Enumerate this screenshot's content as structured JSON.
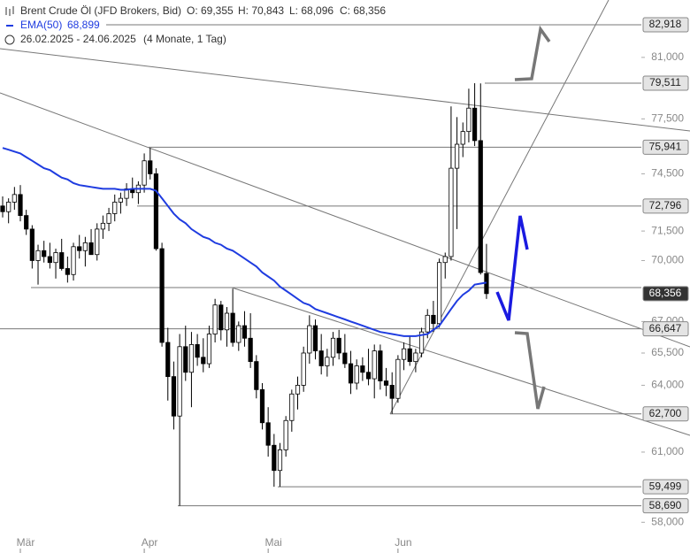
{
  "chart_data": {
    "type": "candlestick",
    "header": {
      "title": "Brent Crude Öl (JFD Brokers, Bid)",
      "open": "O: 69,355",
      "high": "H: 70,843",
      "low": "L: 68,096",
      "close": "C: 68,356",
      "ema_name": "EMA(50)",
      "ema_value": "68,899",
      "range": "26.02.2025 - 24.06.2025",
      "period": "(4 Monate, 1 Tag)"
    },
    "categories": [
      null,
      null,
      null,
      "Mär",
      null,
      null,
      null,
      null,
      null,
      null,
      null,
      null,
      null,
      null,
      null,
      null,
      null,
      null,
      null,
      null,
      null,
      null,
      null,
      null,
      "Apr",
      null,
      null,
      null,
      null,
      null,
      null,
      null,
      null,
      null,
      null,
      null,
      null,
      null,
      null,
      null,
      null,
      null,
      null,
      null,
      null,
      "Mai",
      null,
      null,
      null,
      null,
      null,
      null,
      null,
      null,
      null,
      null,
      null,
      null,
      null,
      null,
      null,
      null,
      null,
      null,
      null,
      null,
      null,
      "Jun",
      null,
      null,
      null,
      null,
      null,
      null,
      null,
      null,
      null,
      null,
      null,
      null,
      null,
      null,
      null
    ],
    "ohlc": [
      [
        72800,
        73300,
        72200,
        72500
      ],
      [
        72500,
        73200,
        71900,
        73000
      ],
      [
        73000,
        73800,
        72600,
        73400
      ],
      [
        73400,
        73900,
        72000,
        72300
      ],
      [
        72300,
        72600,
        71300,
        71600
      ],
      [
        71600,
        71800,
        69600,
        70000
      ],
      [
        70000,
        70800,
        68800,
        70500
      ],
      [
        70500,
        71000,
        69900,
        70200
      ],
      [
        70200,
        70900,
        69600,
        69900
      ],
      [
        69900,
        70600,
        69100,
        70400
      ],
      [
        70400,
        71100,
        69500,
        69600
      ],
      [
        69600,
        70200,
        68900,
        69300
      ],
      [
        69300,
        70900,
        69000,
        70700
      ],
      [
        70700,
        71300,
        70100,
        70500
      ],
      [
        70500,
        71200,
        69700,
        70900
      ],
      [
        70900,
        71600,
        70300,
        70300
      ],
      [
        70300,
        71900,
        70000,
        71600
      ],
      [
        71600,
        72300,
        71100,
        71900
      ],
      [
        71900,
        72700,
        71500,
        72400
      ],
      [
        72400,
        73400,
        72000,
        73000
      ],
      [
        73000,
        73500,
        72400,
        73200
      ],
      [
        73200,
        74000,
        72800,
        73700
      ],
      [
        73700,
        74300,
        73200,
        73500
      ],
      [
        73500,
        74100,
        72900,
        73900
      ],
      [
        73900,
        75600,
        73500,
        75200
      ],
      [
        75200,
        75900,
        74200,
        74500
      ],
      [
        74500,
        74800,
        70500,
        70600
      ],
      [
        70600,
        70900,
        65800,
        66000
      ],
      [
        66000,
        66700,
        63300,
        64400
      ],
      [
        64400,
        65100,
        62000,
        62600
      ],
      [
        62600,
        66400,
        58690,
        65800
      ],
      [
        65800,
        66800,
        64200,
        64600
      ],
      [
        64600,
        66500,
        63000,
        65900
      ],
      [
        65900,
        66400,
        64900,
        65300
      ],
      [
        65300,
        66200,
        64600,
        65000
      ],
      [
        65000,
        66800,
        64800,
        66400
      ],
      [
        66400,
        68100,
        66000,
        67800
      ],
      [
        67800,
        68000,
        66100,
        66600
      ],
      [
        66600,
        67700,
        65800,
        67400
      ],
      [
        67400,
        68600,
        65800,
        66000
      ],
      [
        66000,
        67000,
        65600,
        66800
      ],
      [
        66800,
        67500,
        65800,
        66200
      ],
      [
        66200,
        67400,
        64800,
        65100
      ],
      [
        65100,
        65400,
        63400,
        63800
      ],
      [
        63800,
        64100,
        62000,
        62300
      ],
      [
        62300,
        63000,
        60800,
        61300
      ],
      [
        61300,
        61800,
        59499,
        60200
      ],
      [
        60200,
        61400,
        59500,
        61100
      ],
      [
        61100,
        62600,
        60800,
        62400
      ],
      [
        62400,
        63800,
        61900,
        63600
      ],
      [
        63600,
        64400,
        62900,
        64000
      ],
      [
        64000,
        65800,
        63700,
        65500
      ],
      [
        65500,
        67300,
        65000,
        66800
      ],
      [
        66800,
        67100,
        65200,
        65600
      ],
      [
        65600,
        66400,
        64500,
        64900
      ],
      [
        64900,
        65700,
        64400,
        65300
      ],
      [
        65300,
        66500,
        64900,
        66200
      ],
      [
        66200,
        66600,
        65200,
        65500
      ],
      [
        65500,
        66400,
        64800,
        65000
      ],
      [
        65000,
        65600,
        63600,
        64100
      ],
      [
        64100,
        65200,
        63800,
        64900
      ],
      [
        64900,
        65300,
        64200,
        64600
      ],
      [
        64600,
        65700,
        64000,
        64300
      ],
      [
        64300,
        65900,
        63400,
        65600
      ],
      [
        65600,
        65900,
        63800,
        64200
      ],
      [
        64200,
        64800,
        63500,
        64000
      ],
      [
        64000,
        64600,
        62700,
        63400
      ],
      [
        63400,
        65400,
        63200,
        65200
      ],
      [
        65200,
        66000,
        64700,
        65700
      ],
      [
        65700,
        66300,
        64900,
        65100
      ],
      [
        65100,
        65700,
        64600,
        65500
      ],
      [
        65500,
        66700,
        65300,
        66500
      ],
      [
        66500,
        67600,
        66200,
        67300
      ],
      [
        67300,
        68000,
        66500,
        66900
      ],
      [
        66900,
        70100,
        66700,
        69900
      ],
      [
        69900,
        70400,
        69100,
        70200
      ],
      [
        70200,
        78200,
        70000,
        74800
      ],
      [
        74800,
        77600,
        71600,
        76100
      ],
      [
        76100,
        77300,
        75400,
        76800
      ],
      [
        76800,
        79200,
        76200,
        78100
      ],
      [
        78100,
        79511,
        76000,
        76300
      ],
      [
        76300,
        79500,
        69300,
        69400
      ],
      [
        69355,
        70843,
        68096,
        68356
      ]
    ],
    "ema": {
      "name": "EMA(50)",
      "color": "#1f3ce0",
      "values": [
        75900,
        75800,
        75700,
        75600,
        75400,
        75200,
        75000,
        74800,
        74700,
        74500,
        74300,
        74200,
        74000,
        73900,
        73850,
        73800,
        73750,
        73700,
        73700,
        73700,
        73650,
        73650,
        73700,
        73700,
        73700,
        73700,
        73600,
        73200,
        72800,
        72400,
        72100,
        71900,
        71600,
        71400,
        71200,
        71100,
        70900,
        70800,
        70600,
        70500,
        70300,
        70100,
        69900,
        69700,
        69400,
        69200,
        69000,
        68700,
        68500,
        68300,
        68100,
        67900,
        67800,
        67600,
        67500,
        67400,
        67300,
        67200,
        67100,
        67000,
        66900,
        66800,
        66700,
        66600,
        66500,
        66450,
        66400,
        66350,
        66300,
        66300,
        66300,
        66350,
        66400,
        66600,
        66800,
        67200,
        67600,
        68000,
        68300,
        68500,
        68800,
        68850,
        68899
      ]
    },
    "ylim": [
      57460,
      84410
    ],
    "log_scale": true,
    "yticks": [
      {
        "value": 81000,
        "label": "81,000"
      },
      {
        "value": 77500,
        "label": "77,500"
      },
      {
        "value": 74500,
        "label": "74,500"
      },
      {
        "value": 71500,
        "label": "71,500"
      },
      {
        "value": 70000,
        "label": "70,000"
      },
      {
        "value": 67000,
        "label": "67,000"
      },
      {
        "value": 65500,
        "label": "65,500"
      },
      {
        "value": 64000,
        "label": "64,000"
      },
      {
        "value": 61000,
        "label": "61,000"
      },
      {
        "value": 58000,
        "label": "58,000"
      }
    ],
    "levels": [
      {
        "value": 82918,
        "label": "82,918"
      },
      {
        "value": 79511,
        "label": "79,511"
      },
      {
        "value": 75941,
        "label": "75,941"
      },
      {
        "value": 72796,
        "label": "72,796"
      },
      {
        "value": 66647,
        "label": "66,647"
      },
      {
        "value": 62700,
        "label": "62,700"
      },
      {
        "value": 59499,
        "label": "59,499"
      },
      {
        "value": 58690,
        "label": "58,690"
      }
    ],
    "last_price": {
      "value": 68356,
      "label": "68,356"
    }
  }
}
